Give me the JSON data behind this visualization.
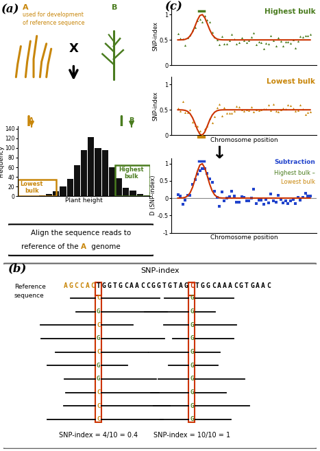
{
  "panel_a_label": "(a)",
  "panel_b_label": "(b)",
  "panel_c_label": "(c)",
  "plant_a_label": "A",
  "plant_b_label": "B",
  "plant_a_sublabel": "used for development\nof reference sequence",
  "plant_a_color": "#c8860a",
  "plant_b_color": "#4a7c1f",
  "cross_symbol": "X",
  "histogram_bars": [
    1,
    1,
    1,
    2,
    4,
    10,
    20,
    36,
    65,
    95,
    123,
    100,
    95,
    60,
    37,
    18,
    12,
    5,
    2
  ],
  "hist_color": "#111111",
  "freq_label": "Frequency",
  "height_label": "Plant height",
  "lowest_bulk_label": "Lowest\nbulk",
  "highest_bulk_label": "Highest\nbulk",
  "lowest_bulk_color": "#c8860a",
  "highest_bulk_color": "#4a7c1f",
  "align_box_text_1": "Align the sequence reads to",
  "align_box_text_2": "reference of the ",
  "align_box_text_A": "A",
  "align_box_text_3": " genome",
  "snp_index_label": "SNP-index",
  "chromosome_position_label": "Chromosome position",
  "d_snp_index_label": "D (SNP-index)",
  "highest_bulk_title": "Highest bulk",
  "lowest_bulk_title": "Lowest bulk",
  "subtraction_title": "Subtraction",
  "highest_bulk_legend": "Highest bulk –",
  "lowest_bulk_legend": "Lowest bulk",
  "green_color": "#4a7c1f",
  "orange_color": "#c8860a",
  "blue_color": "#2244cc",
  "red_color": "#cc3300",
  "snp_index_title": "SNP-index",
  "ref_seq_orange": "AGCCAC",
  "ref_seq_black1": "TGGTGCAACCGGTGTAG",
  "ref_seq_red1": "C",
  "ref_seq_black2": "TGGCAAACGTGAAC",
  "ref_seq_red2": "C",
  "snp1_chars": [
    "C",
    "G",
    "C",
    "G",
    "C",
    "G",
    "G",
    "C",
    "C",
    "C"
  ],
  "snp2_chars": [
    "G",
    "G",
    "G",
    "G",
    "G",
    "G",
    "G",
    "G",
    "G",
    "G"
  ],
  "snp1_label": "SNP-index = 4/10 = 0.4",
  "snp2_label": "SNP-index = 10/10 = 1",
  "bg_color": "#ffffff",
  "ref_sequence_label": "Reference\nsequence"
}
